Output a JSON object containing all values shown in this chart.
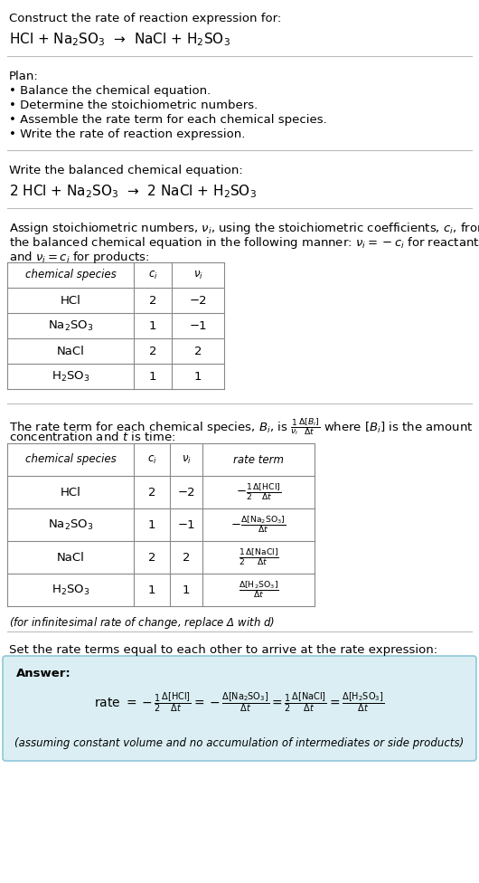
{
  "bg_color": "#ffffff",
  "answer_box_color": "#daeef3",
  "answer_box_edge": "#90c8d8",
  "text_color": "#000000",
  "title_text": "Construct the rate of reaction expression for:",
  "reaction_unbalanced": "HCl + Na$_2$SO$_3$  →  NaCl + H$_2$SO$_3$",
  "plan_header": "Plan:",
  "plan_items": [
    "• Balance the chemical equation.",
    "• Determine the stoichiometric numbers.",
    "• Assemble the rate term for each chemical species.",
    "• Write the rate of reaction expression."
  ],
  "balanced_header": "Write the balanced chemical equation:",
  "reaction_balanced": "2 HCl + Na$_2$SO$_3$  →  2 NaCl + H$_2$SO$_3$",
  "stoich_intro_1": "Assign stoichiometric numbers, $\\nu_i$, using the stoichiometric coefficients, $c_i$, from",
  "stoich_intro_2": "the balanced chemical equation in the following manner: $\\nu_i = -c_i$ for reactants",
  "stoich_intro_3": "and $\\nu_i = c_i$ for products:",
  "table1_headers": [
    "chemical species",
    "$c_i$",
    "$\\nu_i$"
  ],
  "table1_rows": [
    [
      "HCl",
      "2",
      "−2"
    ],
    [
      "Na$_2$SO$_3$",
      "1",
      "−1"
    ],
    [
      "NaCl",
      "2",
      "2"
    ],
    [
      "H$_2$SO$_3$",
      "1",
      "1"
    ]
  ],
  "rate_intro_1": "The rate term for each chemical species, $B_i$, is $\\frac{1}{\\nu_i}\\frac{\\Delta[B_i]}{\\Delta t}$ where $[B_i]$ is the amount",
  "rate_intro_2": "concentration and $t$ is time:",
  "table2_headers": [
    "chemical species",
    "$c_i$",
    "$\\nu_i$",
    "rate term"
  ],
  "table2_rows": [
    [
      "HCl",
      "2",
      "−2",
      "$-\\frac{1}{2}\\frac{\\Delta[\\mathrm{HCl}]}{\\Delta t}$"
    ],
    [
      "Na$_2$SO$_3$",
      "1",
      "−1",
      "$-\\frac{\\Delta[\\mathrm{Na_2SO_3}]}{\\Delta t}$"
    ],
    [
      "NaCl",
      "2",
      "2",
      "$\\frac{1}{2}\\frac{\\Delta[\\mathrm{NaCl}]}{\\Delta t}$"
    ],
    [
      "H$_2$SO$_3$",
      "1",
      "1",
      "$\\frac{\\Delta[\\mathrm{H_2SO_3}]}{\\Delta t}$"
    ]
  ],
  "infinitesimal_note": "(for infinitesimal rate of change, replace Δ with $d$)",
  "set_equal_text": "Set the rate terms equal to each other to arrive at the rate expression:",
  "answer_label": "Answer:",
  "rate_expr_1": "rate $= -\\frac{1}{2}\\frac{\\Delta[\\mathrm{HCl}]}{\\Delta t} = -\\frac{\\Delta[\\mathrm{Na_2SO_3}]}{\\Delta t} = \\frac{1}{2}\\frac{\\Delta[\\mathrm{NaCl}]}{\\Delta t} = \\frac{\\Delta[\\mathrm{H_2SO_3}]}{\\Delta t}$",
  "assuming_note": "(assuming constant volume and no accumulation of intermediates or side products)",
  "fs": 9.5,
  "fs_sm": 8.5,
  "fs_lg": 11.0,
  "fs_eq": 10.0
}
